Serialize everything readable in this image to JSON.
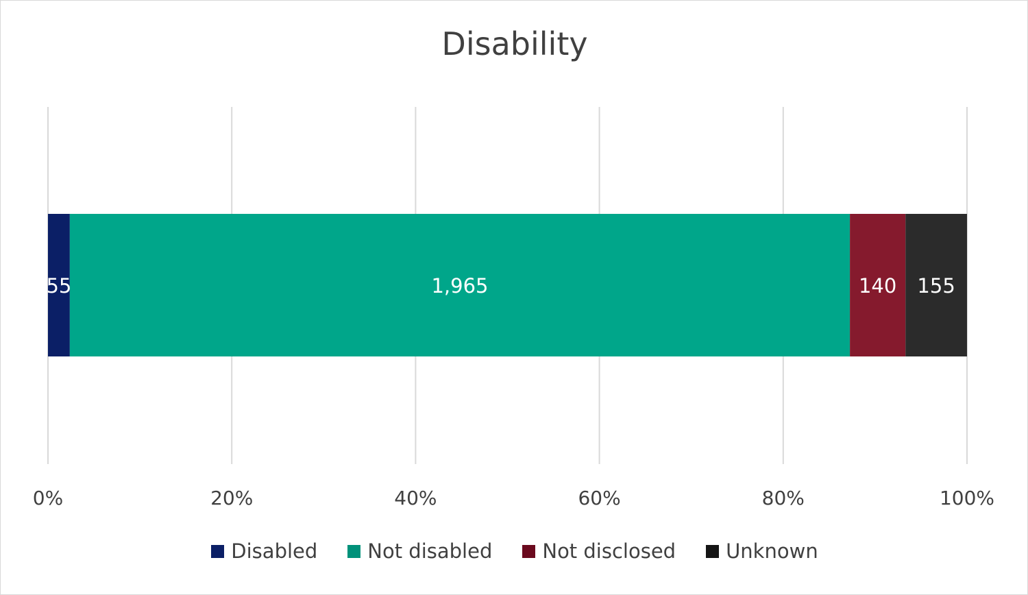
{
  "chart_data": {
    "type": "bar",
    "orientation": "horizontal",
    "stacked": "percent",
    "title": "Disability",
    "xlabel": "",
    "ylabel": "",
    "xlim": [
      0,
      100
    ],
    "x_ticks": [
      "0%",
      "20%",
      "40%",
      "60%",
      "80%",
      "100%"
    ],
    "grid": true,
    "legend_position": "bottom",
    "categories": [
      ""
    ],
    "series": [
      {
        "name": "Disabled",
        "values": [
          55
        ],
        "label": "55",
        "color": "#0b1f66"
      },
      {
        "name": "Not disabled",
        "values": [
          1965
        ],
        "label": "1,965",
        "color": "#00a68a"
      },
      {
        "name": "Not disclosed",
        "values": [
          140
        ],
        "label": "140",
        "color": "#851a2d"
      },
      {
        "name": "Unknown",
        "values": [
          155
        ],
        "label": "155",
        "color": "#2b2b2b"
      }
    ]
  },
  "legend": {
    "swatch_colors": [
      "#0b1f66",
      "#00917a",
      "#6b0a1e",
      "#151515"
    ]
  }
}
